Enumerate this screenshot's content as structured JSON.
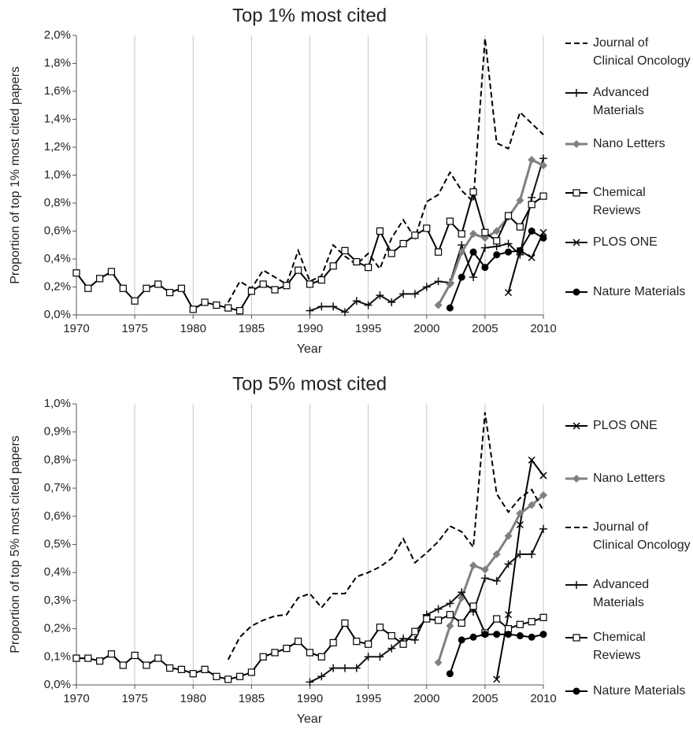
{
  "chart_data": [
    {
      "type": "line",
      "title": "Top 1% most cited",
      "x_label": "Year",
      "y_label": "Proportion of top 1% most cited papers",
      "xlim": [
        1970,
        2010
      ],
      "xticks": [
        1970,
        1975,
        1980,
        1985,
        1990,
        1995,
        2000,
        2005,
        2010
      ],
      "ylim": [
        0,
        2.0
      ],
      "yticks": [
        {
          "value": 0,
          "label": "0,0%"
        },
        {
          "value": 0.2,
          "label": "0,2%"
        },
        {
          "value": 0.4,
          "label": "0,4%"
        },
        {
          "value": 0.6,
          "label": "0,6%"
        },
        {
          "value": 0.8,
          "label": "0,8%"
        },
        {
          "value": 1.0,
          "label": "1,0%"
        },
        {
          "value": 1.2,
          "label": "1,2%"
        },
        {
          "value": 1.4,
          "label": "1,4%"
        },
        {
          "value": 1.6,
          "label": "1,6%"
        },
        {
          "value": 1.8,
          "label": "1,8%"
        },
        {
          "value": 2.0,
          "label": "2,0%"
        }
      ],
      "grid_x": true,
      "legend": "right",
      "series": [
        {
          "name": "Journal of Clinical Oncology",
          "color": "#000000",
          "dash": true,
          "marker": "none",
          "x": [
            1983,
            1984,
            1985,
            1986,
            1987,
            1988,
            1989,
            1990,
            1991,
            1992,
            1993,
            1994,
            1995,
            1996,
            1997,
            1998,
            1999,
            2000,
            2001,
            2002,
            2003,
            2004,
            2005,
            2006,
            2007,
            2008,
            2009,
            2010
          ],
          "values": [
            0.09,
            0.24,
            0.19,
            0.32,
            0.27,
            0.22,
            0.46,
            0.24,
            0.28,
            0.5,
            0.42,
            0.36,
            0.44,
            0.33,
            0.55,
            0.68,
            0.55,
            0.81,
            0.86,
            1.02,
            0.89,
            0.81,
            1.98,
            1.23,
            1.19,
            1.45,
            1.37,
            1.29
          ]
        },
        {
          "name": "Advanced Materials",
          "color": "#111111",
          "dash": false,
          "marker": "plus",
          "x": [
            1990,
            1991,
            1992,
            1993,
            1994,
            1995,
            1996,
            1997,
            1998,
            1999,
            2000,
            2001,
            2002,
            2003,
            2004,
            2005,
            2006,
            2007,
            2008,
            2009,
            2010
          ],
          "values": [
            0.03,
            0.06,
            0.06,
            0.02,
            0.1,
            0.07,
            0.14,
            0.09,
            0.15,
            0.15,
            0.2,
            0.24,
            0.23,
            0.5,
            0.27,
            0.48,
            0.49,
            0.51,
            0.43,
            0.84,
            1.12
          ]
        },
        {
          "name": "Nano Letters",
          "color": "#808080",
          "dash": false,
          "marker": "diamond",
          "x": [
            2001,
            2002,
            2003,
            2004,
            2005,
            2006,
            2007,
            2008,
            2009,
            2010
          ],
          "values": [
            0.07,
            0.22,
            0.45,
            0.58,
            0.55,
            0.6,
            0.7,
            0.82,
            1.11,
            1.07
          ]
        },
        {
          "name": "Chemical Reviews",
          "color": "#000000",
          "dash": false,
          "marker": "square",
          "x": [
            1970,
            1971,
            1972,
            1973,
            1974,
            1975,
            1976,
            1977,
            1978,
            1979,
            1980,
            1981,
            1982,
            1983,
            1984,
            1985,
            1986,
            1987,
            1988,
            1989,
            1990,
            1991,
            1992,
            1993,
            1994,
            1995,
            1996,
            1997,
            1998,
            1999,
            2000,
            2001,
            2002,
            2003,
            2004,
            2005,
            2006,
            2007,
            2008,
            2009,
            2010
          ],
          "values": [
            0.3,
            0.19,
            0.26,
            0.31,
            0.19,
            0.1,
            0.19,
            0.22,
            0.16,
            0.19,
            0.04,
            0.09,
            0.07,
            0.05,
            0.03,
            0.17,
            0.22,
            0.18,
            0.21,
            0.32,
            0.22,
            0.25,
            0.35,
            0.46,
            0.38,
            0.34,
            0.6,
            0.44,
            0.51,
            0.57,
            0.62,
            0.45,
            0.67,
            0.58,
            0.88,
            0.59,
            0.53,
            0.71,
            0.63,
            0.79,
            0.85
          ]
        },
        {
          "name": "PLOS ONE",
          "color": "#000000",
          "dash": false,
          "marker": "x",
          "x": [
            2007,
            2008,
            2009,
            2010
          ],
          "values": [
            0.16,
            0.46,
            0.41,
            0.59
          ]
        },
        {
          "name": "Nature Materials",
          "color": "#000000",
          "dash": false,
          "marker": "circle",
          "x": [
            2002,
            2003,
            2004,
            2005,
            2006,
            2007,
            2008,
            2009,
            2010
          ],
          "values": [
            0.05,
            0.27,
            0.45,
            0.34,
            0.43,
            0.45,
            0.46,
            0.6,
            0.55
          ]
        }
      ]
    },
    {
      "type": "line",
      "title": "Top 5% most cited",
      "x_label": "Year",
      "y_label": "Proportion of top 5% most cited papers",
      "xlim": [
        1970,
        2010
      ],
      "xticks": [
        1970,
        1975,
        1980,
        1985,
        1990,
        1995,
        2000,
        2005,
        2010
      ],
      "ylim": [
        0,
        1.0
      ],
      "yticks": [
        {
          "value": 0,
          "label": "0,0%"
        },
        {
          "value": 0.1,
          "label": "0,1%"
        },
        {
          "value": 0.2,
          "label": "0,2%"
        },
        {
          "value": 0.3,
          "label": "0,3%"
        },
        {
          "value": 0.4,
          "label": "0,4%"
        },
        {
          "value": 0.5,
          "label": "0,5%"
        },
        {
          "value": 0.6,
          "label": "0,6%"
        },
        {
          "value": 0.7,
          "label": "0,7%"
        },
        {
          "value": 0.8,
          "label": "0,8%"
        },
        {
          "value": 0.9,
          "label": "0,9%"
        },
        {
          "value": 1.0,
          "label": "1,0%"
        }
      ],
      "grid_x": true,
      "legend": "right",
      "series": [
        {
          "name": "PLOS ONE",
          "color": "#000000",
          "dash": false,
          "marker": "x",
          "x": [
            2006,
            2007,
            2008,
            2009,
            2010
          ],
          "values": [
            0.02,
            0.25,
            0.57,
            0.8,
            0.745
          ]
        },
        {
          "name": "Nano Letters",
          "color": "#808080",
          "dash": false,
          "marker": "diamond",
          "x": [
            2001,
            2002,
            2003,
            2004,
            2005,
            2006,
            2007,
            2008,
            2009,
            2010
          ],
          "values": [
            0.08,
            0.21,
            0.31,
            0.425,
            0.41,
            0.465,
            0.53,
            0.61,
            0.64,
            0.675
          ]
        },
        {
          "name": "Journal of Clinical Oncology",
          "color": "#000000",
          "dash": true,
          "marker": "none",
          "x": [
            1983,
            1984,
            1985,
            1986,
            1987,
            1988,
            1989,
            1990,
            1991,
            1992,
            1993,
            1994,
            1995,
            1996,
            1997,
            1998,
            1999,
            2000,
            2001,
            2002,
            2003,
            2004,
            2005,
            2006,
            2007,
            2008,
            2009,
            2010
          ],
          "values": [
            0.09,
            0.17,
            0.21,
            0.23,
            0.245,
            0.25,
            0.31,
            0.325,
            0.275,
            0.325,
            0.325,
            0.385,
            0.4,
            0.42,
            0.45,
            0.52,
            0.435,
            0.47,
            0.51,
            0.565,
            0.545,
            0.49,
            0.97,
            0.68,
            0.615,
            0.665,
            0.695,
            0.62
          ]
        },
        {
          "name": "Advanced Materials",
          "color": "#111111",
          "dash": false,
          "marker": "plus",
          "x": [
            1990,
            1991,
            1992,
            1993,
            1994,
            1995,
            1996,
            1997,
            1998,
            1999,
            2000,
            2001,
            2002,
            2003,
            2004,
            2005,
            2006,
            2007,
            2008,
            2009,
            2010
          ],
          "values": [
            0.01,
            0.03,
            0.06,
            0.06,
            0.06,
            0.1,
            0.1,
            0.13,
            0.165,
            0.16,
            0.25,
            0.27,
            0.29,
            0.33,
            0.26,
            0.38,
            0.37,
            0.43,
            0.465,
            0.465,
            0.555
          ]
        },
        {
          "name": "Chemical Reviews",
          "color": "#000000",
          "dash": false,
          "marker": "square",
          "x": [
            1970,
            1971,
            1972,
            1973,
            1974,
            1975,
            1976,
            1977,
            1978,
            1979,
            1980,
            1981,
            1982,
            1983,
            1984,
            1985,
            1986,
            1987,
            1988,
            1989,
            1990,
            1991,
            1992,
            1993,
            1994,
            1995,
            1996,
            1997,
            1998,
            1999,
            2000,
            2001,
            2002,
            2003,
            2004,
            2005,
            2006,
            2007,
            2008,
            2009,
            2010
          ],
          "values": [
            0.095,
            0.095,
            0.085,
            0.11,
            0.07,
            0.105,
            0.07,
            0.095,
            0.06,
            0.055,
            0.04,
            0.055,
            0.03,
            0.02,
            0.03,
            0.045,
            0.1,
            0.115,
            0.13,
            0.155,
            0.115,
            0.1,
            0.15,
            0.22,
            0.155,
            0.145,
            0.205,
            0.175,
            0.145,
            0.19,
            0.235,
            0.23,
            0.25,
            0.22,
            0.28,
            0.185,
            0.235,
            0.2,
            0.215,
            0.225,
            0.24
          ]
        },
        {
          "name": "Nature Materials",
          "color": "#000000",
          "dash": false,
          "marker": "circle",
          "x": [
            2002,
            2003,
            2004,
            2005,
            2006,
            2007,
            2008,
            2009,
            2010
          ],
          "values": [
            0.04,
            0.16,
            0.17,
            0.18,
            0.18,
            0.18,
            0.175,
            0.17,
            0.18
          ]
        }
      ]
    }
  ]
}
